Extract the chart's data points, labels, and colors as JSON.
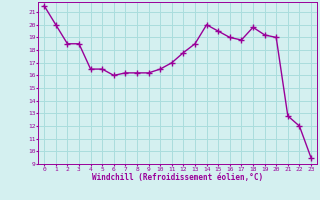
{
  "x": [
    0,
    1,
    2,
    3,
    4,
    5,
    6,
    7,
    8,
    9,
    10,
    11,
    12,
    13,
    14,
    15,
    16,
    17,
    18,
    19,
    20,
    21,
    22,
    23
  ],
  "y": [
    21.5,
    20.0,
    18.5,
    18.5,
    16.5,
    16.5,
    16.0,
    16.2,
    16.2,
    16.2,
    16.5,
    17.0,
    17.8,
    18.5,
    20.0,
    19.5,
    19.0,
    18.8,
    19.8,
    19.2,
    19.0,
    12.8,
    12.0,
    9.5
  ],
  "line_color": "#990099",
  "marker_color": "#990099",
  "bg_color": "#d4f0f0",
  "grid_color": "#aadddd",
  "xlabel": "Windchill (Refroidissement éolien,°C)",
  "xlabel_color": "#990099",
  "tick_color": "#990099",
  "xlim": [
    -0.5,
    23.5
  ],
  "ylim": [
    9,
    21.8
  ],
  "yticks": [
    9,
    10,
    11,
    12,
    13,
    14,
    15,
    16,
    17,
    18,
    19,
    20,
    21
  ],
  "xticks": [
    0,
    1,
    2,
    3,
    4,
    5,
    6,
    7,
    8,
    9,
    10,
    11,
    12,
    13,
    14,
    15,
    16,
    17,
    18,
    19,
    20,
    21,
    22,
    23
  ],
  "marker_size": 4,
  "line_width": 1.0
}
